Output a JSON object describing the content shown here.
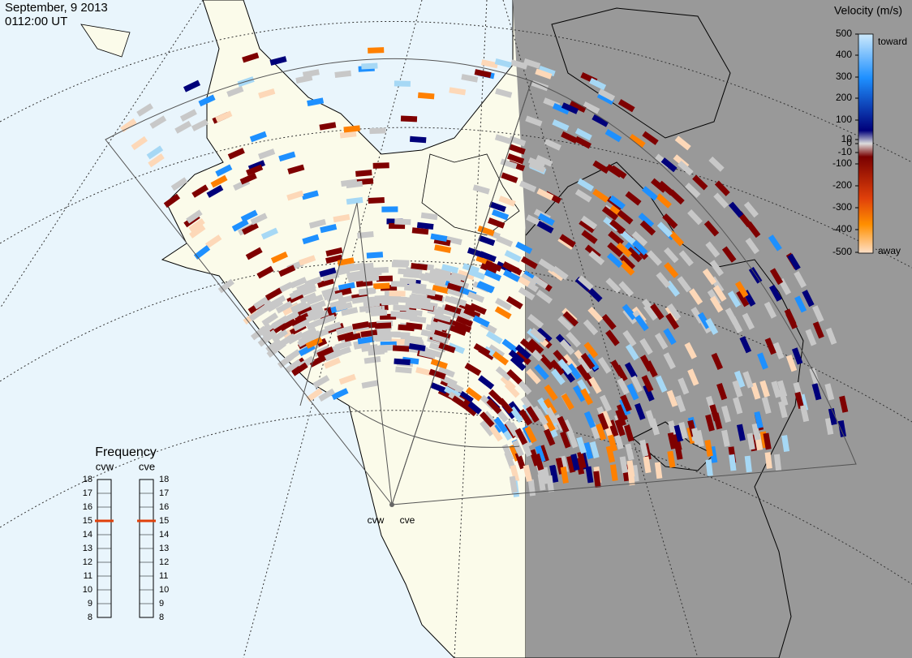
{
  "header": {
    "date": "September, 9 2013",
    "time": "0112:00 UT"
  },
  "colorbar": {
    "title": "Velocity (m/s)",
    "ticks": [
      "500",
      "400",
      "300",
      "200",
      "100",
      "10",
      "0",
      "-10",
      "-100",
      "-200",
      "-300",
      "-400",
      "-500"
    ],
    "toward": "toward",
    "away": "away"
  },
  "frequency": {
    "title": "Frequency",
    "radars": [
      {
        "name": "cvw",
        "value": 15
      },
      {
        "name": "cve",
        "value": 15
      }
    ],
    "ticks": [
      18,
      17,
      16,
      15,
      14,
      13,
      12,
      11,
      10,
      9,
      8
    ]
  },
  "stations": [
    "cvw",
    "cve"
  ]
}
